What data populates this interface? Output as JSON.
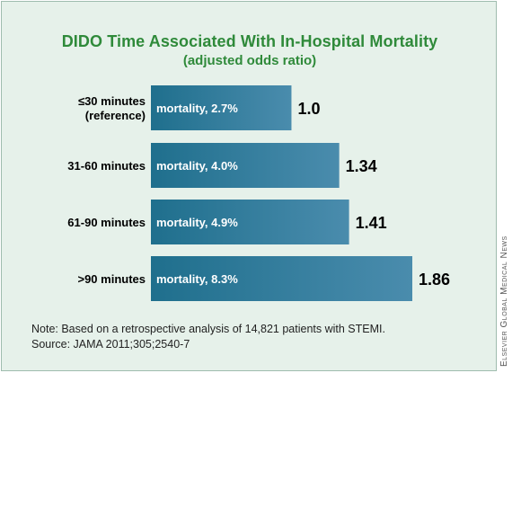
{
  "chart_data": {
    "type": "bar",
    "orientation": "horizontal",
    "title": "DIDO Time Associated With In-Hospital Mortality",
    "subtitle": "(adjusted odds ratio)",
    "categories": [
      {
        "line1": "≤30 minutes",
        "line2": "(reference)"
      },
      {
        "line1": "31-60 minutes",
        "line2": ""
      },
      {
        "line1": "61-90 minutes",
        "line2": ""
      },
      {
        "line1": ">90 minutes",
        "line2": ""
      }
    ],
    "values": [
      1.0,
      1.34,
      1.41,
      1.86
    ],
    "value_labels": [
      "1.0",
      "1.34",
      "1.41",
      "1.86"
    ],
    "bar_labels": [
      "mortality, 2.7%",
      "mortality, 4.0%",
      "mortality, 4.9%",
      "mortality, 8.3%"
    ],
    "xlim": [
      0,
      1.86
    ],
    "grid": false,
    "bar_color_start": "#1f6f8d",
    "bar_color_end": "#4a8cad"
  },
  "note": {
    "line1": "Note: Based on a retrospective analysis of 14,821 patients with STEMI.",
    "line2": "Source: JAMA 2011;305;2540-7"
  },
  "credit": "Elsevier Global Medical News"
}
